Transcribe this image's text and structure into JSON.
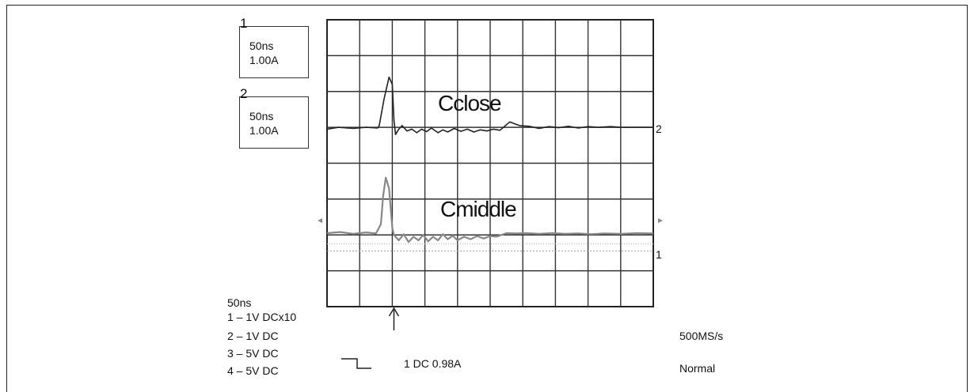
{
  "chart_data": {
    "type": "line",
    "title": "",
    "xlabel": "",
    "ylabel": "",
    "grid": true,
    "grid_divisions": {
      "x": 10,
      "y": 8
    },
    "channel_boxes": [
      {
        "num": "1",
        "time": "50ns",
        "scale": "1.00A"
      },
      {
        "num": "2",
        "time": "50ns",
        "scale": "1.00A"
      }
    ],
    "trace_labels": {
      "upper": "Cclose",
      "lower": "Cmiddle"
    },
    "marker_labels": {
      "ch2": "2",
      "ch1": "1"
    },
    "settings": {
      "timebase": "50ns",
      "channels": [
        "1 – 1V  DCx10",
        "2 – 1V  DC",
        "3 – 5V  DC",
        "4 – 5V  DC"
      ],
      "trigger": "1  DC 0.98A",
      "sample_rate": "500MS/s",
      "mode": "Normal"
    },
    "x_unit": "divisions (50ns/div)",
    "y_unit": "divisions",
    "series": [
      {
        "label_ref": "Cclose",
        "color": "#222222",
        "points": [
          [
            0,
            4.95
          ],
          [
            0.35,
            5.0
          ],
          [
            0.8,
            4.97
          ],
          [
            1.2,
            5.0
          ],
          [
            1.55,
            4.98
          ],
          [
            1.6,
            5.05
          ],
          [
            1.75,
            5.8
          ],
          [
            1.9,
            6.4
          ],
          [
            2.0,
            6.2
          ],
          [
            2.05,
            5.2
          ],
          [
            2.1,
            4.8
          ],
          [
            2.2,
            4.95
          ],
          [
            2.3,
            5.05
          ],
          [
            2.45,
            4.9
          ],
          [
            2.6,
            4.95
          ],
          [
            2.75,
            4.85
          ],
          [
            2.9,
            4.95
          ],
          [
            3.05,
            4.88
          ],
          [
            3.2,
            4.98
          ],
          [
            3.4,
            4.85
          ],
          [
            3.55,
            4.93
          ],
          [
            3.7,
            4.87
          ],
          [
            3.9,
            4.97
          ],
          [
            4.1,
            4.89
          ],
          [
            4.3,
            4.95
          ],
          [
            4.5,
            4.87
          ],
          [
            4.7,
            4.93
          ],
          [
            4.9,
            4.9
          ],
          [
            5.1,
            4.95
          ],
          [
            5.3,
            4.92
          ],
          [
            5.6,
            5.15
          ],
          [
            5.9,
            5.05
          ],
          [
            6.2,
            5.03
          ],
          [
            6.5,
            4.97
          ],
          [
            6.8,
            5.02
          ],
          [
            7.1,
            4.99
          ],
          [
            7.4,
            5.03
          ],
          [
            7.7,
            4.98
          ],
          [
            8.0,
            5.02
          ],
          [
            8.3,
            5.0
          ],
          [
            8.7,
            5.02
          ],
          [
            9.0,
            5.0
          ],
          [
            9.5,
            5.0
          ],
          [
            10,
            5.0
          ]
        ]
      },
      {
        "label_ref": "Cmiddle",
        "color": "#888888",
        "points": [
          [
            0,
            2.05
          ],
          [
            0.4,
            2.08
          ],
          [
            0.8,
            2.03
          ],
          [
            1.2,
            2.07
          ],
          [
            1.5,
            2.04
          ],
          [
            1.65,
            2.3
          ],
          [
            1.72,
            3.1
          ],
          [
            1.8,
            3.6
          ],
          [
            1.9,
            3.3
          ],
          [
            2.0,
            2.2
          ],
          [
            2.05,
            2.0
          ],
          [
            2.2,
            1.85
          ],
          [
            2.35,
            2.02
          ],
          [
            2.5,
            1.8
          ],
          [
            2.65,
            1.95
          ],
          [
            2.8,
            1.85
          ],
          [
            2.95,
            2.0
          ],
          [
            3.1,
            1.82
          ],
          [
            3.25,
            1.95
          ],
          [
            3.4,
            1.85
          ],
          [
            3.55,
            2.02
          ],
          [
            3.7,
            1.88
          ],
          [
            3.85,
            1.98
          ],
          [
            4.0,
            1.85
          ],
          [
            4.2,
            1.95
          ],
          [
            4.4,
            1.88
          ],
          [
            4.6,
            1.97
          ],
          [
            4.8,
            1.9
          ],
          [
            5.0,
            1.97
          ],
          [
            5.2,
            1.95
          ],
          [
            5.5,
            2.05
          ],
          [
            5.8,
            2.04
          ],
          [
            6.1,
            2.05
          ],
          [
            6.5,
            2.03
          ],
          [
            6.9,
            2.05
          ],
          [
            7.3,
            2.03
          ],
          [
            7.7,
            2.04
          ],
          [
            8.1,
            2.02
          ],
          [
            8.5,
            2.04
          ],
          [
            9.0,
            2.03
          ],
          [
            9.5,
            2.05
          ],
          [
            10,
            2.04
          ]
        ]
      }
    ]
  }
}
